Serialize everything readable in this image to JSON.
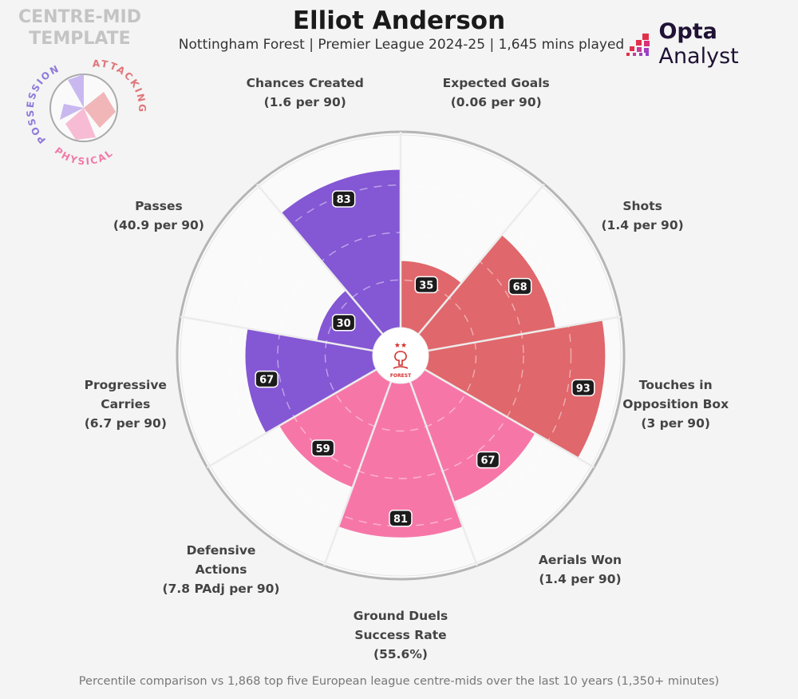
{
  "header": {
    "title": "Elliot Anderson",
    "subtitle": "Nottingham Forest | Premier League 2024-25 | 1,645 mins played",
    "template_line1": "CENTRE-MID",
    "template_line2": "TEMPLATE",
    "brand_bold": "Opta",
    "brand_rest": " Analyst"
  },
  "legend": {
    "possession": "POSSESSION",
    "attacking": "ATTACKING",
    "physical": "PHYSICAL"
  },
  "badge": {
    "text": "FOREST"
  },
  "footer": "Percentile comparison vs 1,868 top five European league centre-mids over the last 10 years (1,350+ minutes)",
  "colors": {
    "possession": "#8457d4",
    "attacking": "#e0676b",
    "physical": "#f776a8"
  },
  "chart_data": {
    "type": "pie-radar",
    "title": "Elliot Anderson",
    "range": [
      0,
      100
    ],
    "categories": [
      {
        "label": [
          "Expected Goals",
          "(0.06 per 90)"
        ],
        "value": 35,
        "group": "attacking"
      },
      {
        "label": [
          "Shots",
          "(1.4 per 90)"
        ],
        "value": 68,
        "group": "attacking"
      },
      {
        "label": [
          "Touches in",
          "Opposition Box",
          "(3 per 90)"
        ],
        "value": 93,
        "group": "attacking"
      },
      {
        "label": [
          "Aerials Won",
          "(1.4 per 90)"
        ],
        "value": 67,
        "group": "physical"
      },
      {
        "label": [
          "Ground Duels",
          "Success Rate",
          "(55.6%)"
        ],
        "value": 81,
        "group": "physical"
      },
      {
        "label": [
          "Defensive",
          "Actions",
          "(7.8 PAdj per 90)"
        ],
        "value": 59,
        "group": "physical"
      },
      {
        "label": [
          "Progressive",
          "Carries",
          "(6.7 per 90)"
        ],
        "value": 67,
        "group": "possession"
      },
      {
        "label": [
          "Passes",
          "(40.9 per 90)"
        ],
        "value": 30,
        "group": "possession"
      },
      {
        "label": [
          "Chances Created",
          "(1.6 per 90)"
        ],
        "value": 83,
        "group": "possession"
      }
    ]
  }
}
